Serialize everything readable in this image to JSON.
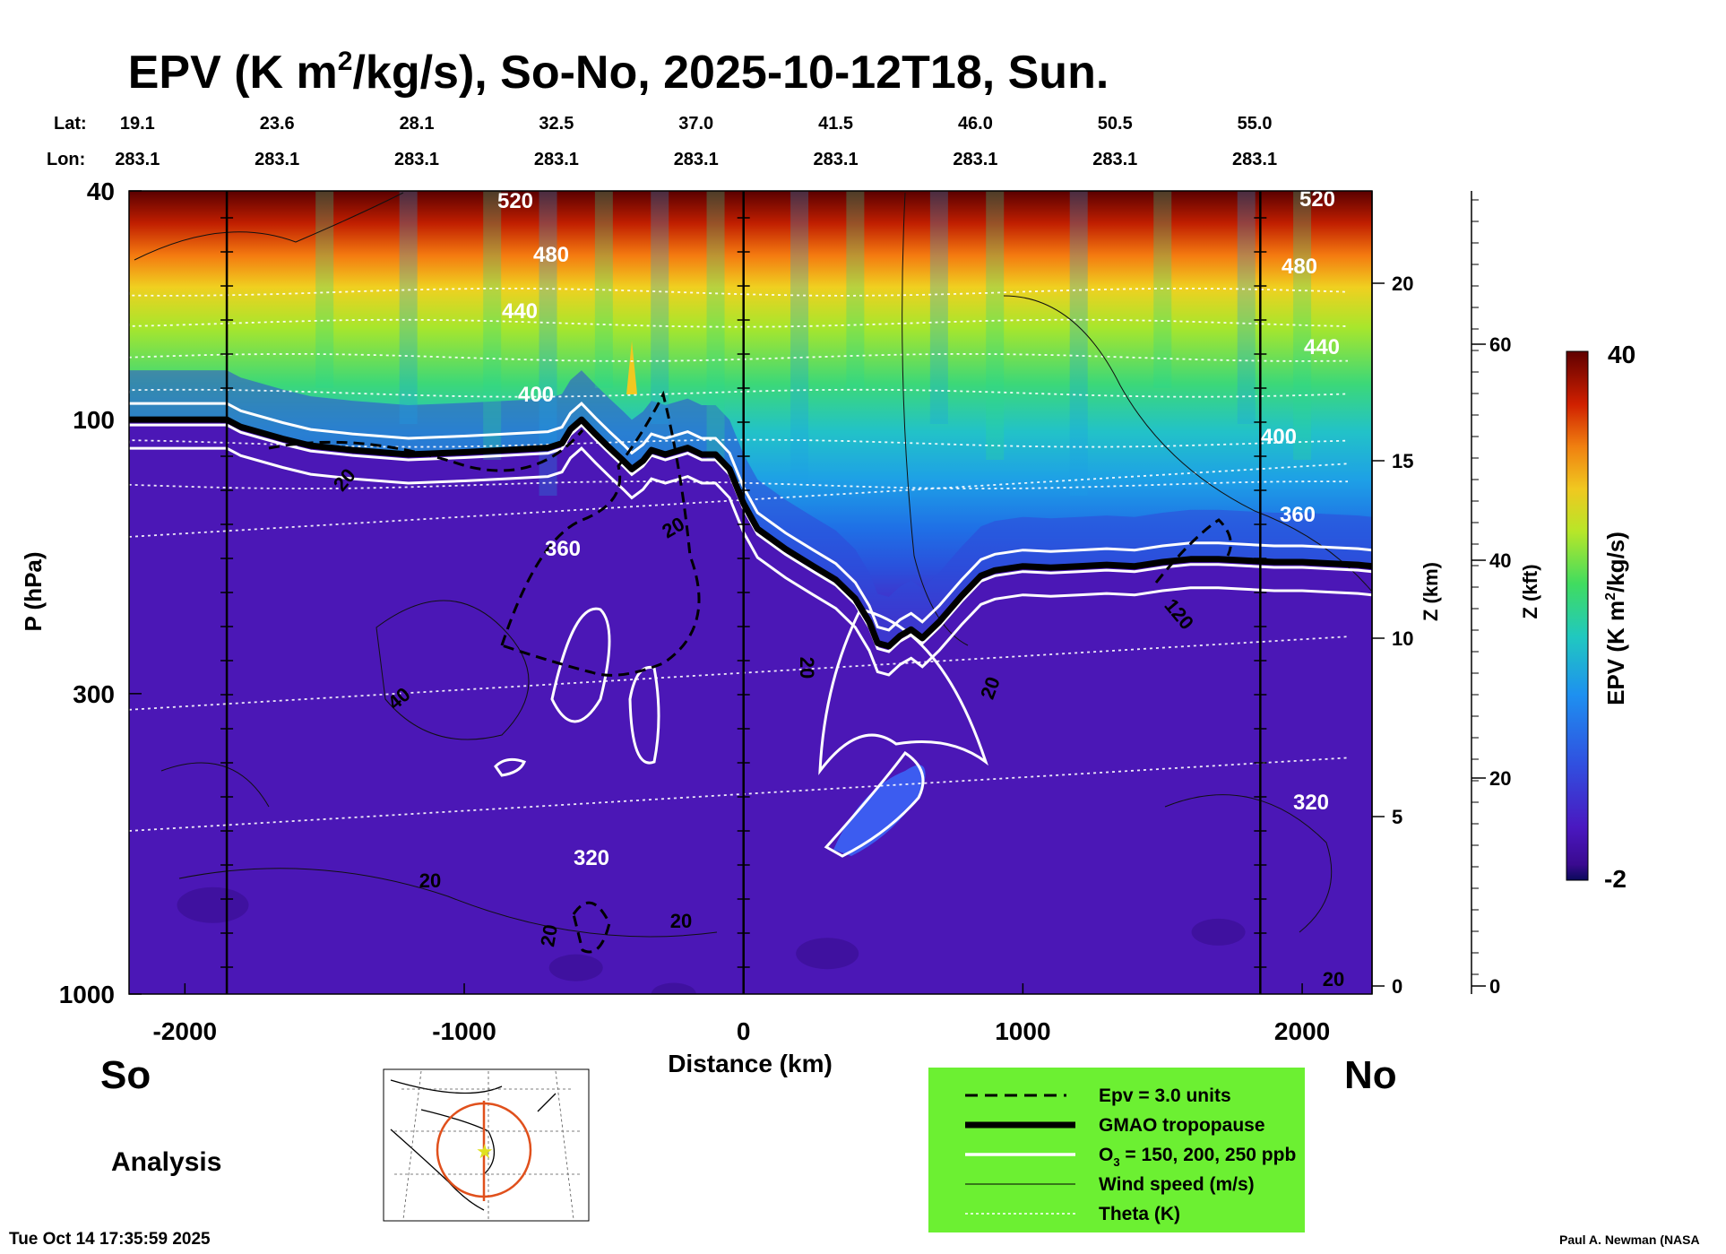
{
  "header": {
    "title_prefix": "EPV (K m",
    "title_sup": "2",
    "title_suffix": "/kg/s), So-No, 2025-10-12T18, Sun."
  },
  "chart_data": {
    "type": "heatmap",
    "xlabel": "Distance (km)",
    "ylabel": "P (hPa)",
    "x_range": [
      -2200,
      2250
    ],
    "p_range": [
      1000,
      40
    ],
    "y_scale": "log",
    "x_ticks": [
      "-2000",
      "-1000",
      "0",
      "1000",
      "2000"
    ],
    "x_tick_values": [
      -2000,
      -1000,
      0,
      1000,
      2000
    ],
    "p_ticks": [
      "40",
      "100",
      "300",
      "1000"
    ],
    "p_tick_values": [
      40,
      100,
      300,
      1000
    ],
    "z_km_label": "Z (km)",
    "z_km_ticks": [
      "0",
      "5",
      "10",
      "15",
      "20"
    ],
    "z_kft_label": "Z (kft)",
    "z_kft_ticks": [
      "0",
      "20",
      "40",
      "60"
    ],
    "lat_label": "Lat:",
    "lon_label": "Lon:",
    "lat_values": [
      "19.1",
      "23.6",
      "28.1",
      "32.5",
      "37.0",
      "41.5",
      "46.0",
      "50.5",
      "55.0"
    ],
    "lon_values": [
      "283.1",
      "283.1",
      "283.1",
      "283.1",
      "283.1",
      "283.1",
      "283.1",
      "283.1",
      "283.1"
    ],
    "lat_lon_distances": [
      -2170,
      -1670,
      -1170,
      -670,
      -170,
      330,
      830,
      1330,
      1830
    ],
    "vertical_lines_km": [
      -1850,
      0,
      1850
    ],
    "colorbar": {
      "label": "EPV (K m²/kg/s)",
      "min": "-2",
      "max": "40"
    },
    "theta_labels": [
      "520",
      "480",
      "440",
      "400",
      "360",
      "320",
      "520",
      "480",
      "440",
      "400",
      "360",
      "320"
    ],
    "wind_labels": [
      "20",
      "40",
      "20",
      "20",
      "20",
      "20",
      "20",
      "20",
      "120",
      "20"
    ],
    "tropopause": {
      "x": [
        -2200,
        -2050,
        -1950,
        -1850,
        -1800,
        -1650,
        -1550,
        -1400,
        -1200,
        -1000,
        -850,
        -700,
        -650,
        -620,
        -580,
        -530,
        -480,
        -430,
        -400,
        -360,
        -330,
        -280,
        -200,
        -150,
        -100,
        -50,
        0,
        50,
        150,
        250,
        330,
        400,
        450,
        480,
        520,
        560,
        600,
        640,
        700,
        780,
        850,
        900,
        1000,
        1100,
        1200,
        1300,
        1400,
        1500,
        1600,
        1700,
        1800,
        1900,
        2000,
        2100,
        2200,
        2250
      ],
      "p": [
        100,
        100,
        100,
        100,
        103,
        108,
        111,
        113,
        115,
        114,
        113,
        112,
        110,
        104,
        100,
        106,
        112,
        118,
        122,
        118,
        113,
        115,
        112,
        115,
        115,
        122,
        140,
        155,
        168,
        180,
        190,
        205,
        225,
        245,
        248,
        238,
        232,
        240,
        225,
        203,
        187,
        183,
        180,
        181,
        180,
        179,
        180,
        177,
        175,
        175,
        176,
        177,
        177,
        178,
        179,
        180
      ]
    },
    "ozone_contours_ppb": [
      "150",
      "200",
      "250"
    ],
    "epv_dashed_contour": "3.0"
  },
  "sidebar": {
    "south_label": "So",
    "north_label": "No",
    "analysis_label": "Analysis"
  },
  "legend": {
    "items": [
      {
        "label": "Epv = 3.0 units",
        "style": "dashed"
      },
      {
        "label": "GMAO tropopause",
        "style": "thick"
      },
      {
        "label_main": "O",
        "label_sub": "3",
        "label_rest": " = 150, 200, 250 ppb",
        "style": "white"
      },
      {
        "label": "Wind speed (m/s)",
        "style": "thin"
      },
      {
        "label": "Theta (K)",
        "style": "dotted"
      }
    ],
    "background": "#6cf032"
  },
  "footer": {
    "timestamp": "Tue Oct 14 17:35:59 2025",
    "credit": "Paul A. Newman (NASA"
  },
  "colors": {
    "troposphere": "#4b16b8",
    "lower_strat": "#1f5ee8",
    "mid_strat": "#22c9a8",
    "upper_strat": "#8fe32c",
    "top": "#c83b0a"
  }
}
